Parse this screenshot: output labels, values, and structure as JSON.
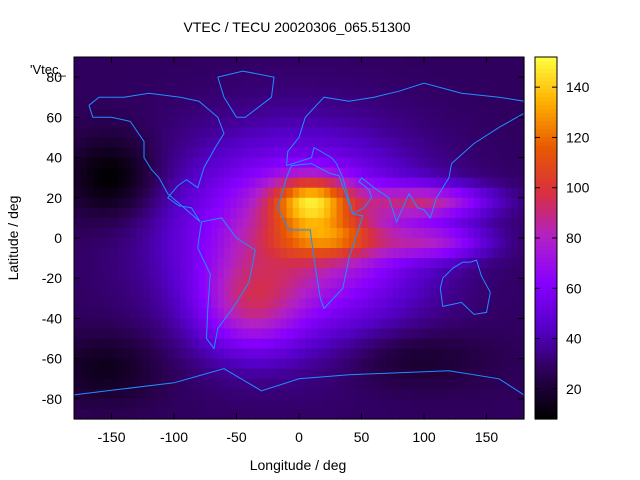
{
  "chart_data": {
    "type": "heatmap",
    "title": "VTEC / TECU 20020306_065.51300",
    "xlabel": "Longitude / deg",
    "ylabel": "Latitude / deg",
    "corner_label": "'Vtec_",
    "xlim": [
      -180,
      180
    ],
    "ylim": [
      -90,
      90
    ],
    "xticks": [
      -150,
      -100,
      -50,
      0,
      50,
      100,
      150
    ],
    "yticks": [
      -80,
      -60,
      -40,
      -20,
      0,
      20,
      40,
      60,
      80
    ],
    "colorbar": {
      "range": [
        8,
        152
      ],
      "ticks": [
        20,
        40,
        60,
        80,
        100,
        120,
        140
      ],
      "palette": [
        "#000000",
        "#2a0050",
        "#5500c8",
        "#8800ff",
        "#b020c8",
        "#d83040",
        "#e85a00",
        "#ffb000",
        "#ffff40"
      ]
    },
    "grid": false,
    "coastline_color": "#1e90ff",
    "field": {
      "background_vtec": 30,
      "features": [
        {
          "name": "equatorial anomaly north crest",
          "lon": 10,
          "lat": 18,
          "peak_vtec": 150
        },
        {
          "name": "equatorial anomaly south crest",
          "lon": 20,
          "lat": 0,
          "peak_vtec": 120
        },
        {
          "name": "dayside bulge",
          "lon": -5,
          "lat": 0,
          "peak_vtec": 100
        },
        {
          "name": "asian extension north",
          "lon": 110,
          "lat": 18,
          "peak_vtec": 95
        },
        {
          "name": "asian extension south",
          "lon": 110,
          "lat": -2,
          "peak_vtec": 85
        },
        {
          "name": "south atlantic",
          "lon": -40,
          "lat": -40,
          "peak_vtec": 80
        },
        {
          "name": "night minimum north pacific",
          "lon": -150,
          "lat": 30,
          "peak_vtec": 8
        },
        {
          "name": "night minimum south pacific",
          "lon": -150,
          "lat": -65,
          "peak_vtec": 15
        }
      ]
    }
  }
}
